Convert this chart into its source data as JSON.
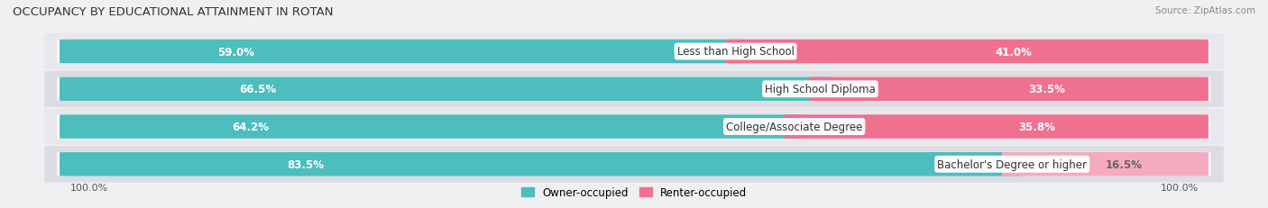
{
  "title": "OCCUPANCY BY EDUCATIONAL ATTAINMENT IN ROTAN",
  "source": "Source: ZipAtlas.com",
  "categories": [
    "Less than High School",
    "High School Diploma",
    "College/Associate Degree",
    "Bachelor's Degree or higher"
  ],
  "owner_pct": [
    59.0,
    66.5,
    64.2,
    83.5
  ],
  "renter_pct": [
    41.0,
    33.5,
    35.8,
    16.5
  ],
  "owner_color": "#4dbdbd",
  "renter_colors": [
    "#f07090",
    "#f07090",
    "#f07090",
    "#f5aac0"
  ],
  "row_bg_colors": [
    "#f0f0f2",
    "#e4e4e8",
    "#f0f0f2",
    "#e4e4e8"
  ],
  "pill_bg_color": "#fafafa",
  "label_fontsize": 8.5,
  "title_fontsize": 9.5,
  "source_fontsize": 7.5,
  "legend_fontsize": 8.5,
  "cat_label_fontsize": 8.5
}
